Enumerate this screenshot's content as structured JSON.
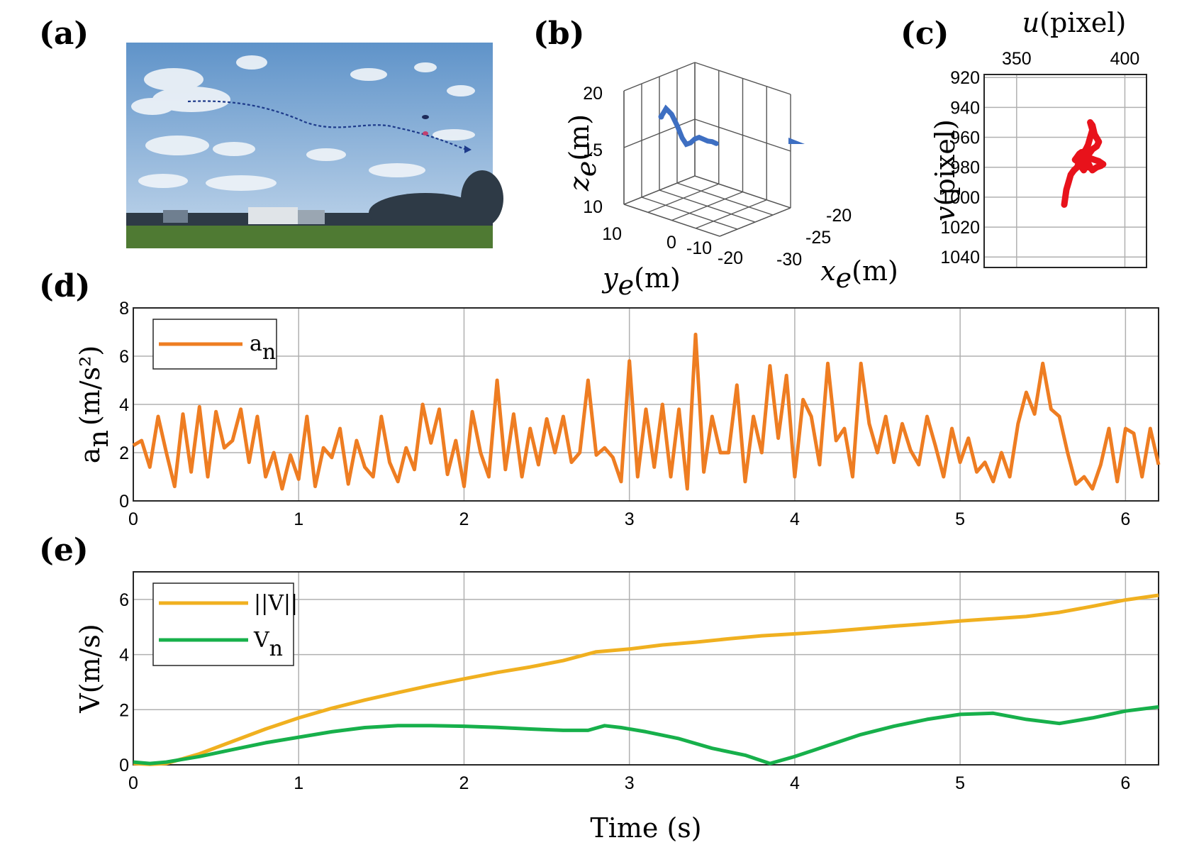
{
  "panels": {
    "a": "(a)",
    "b": "(b)",
    "c": "(c)",
    "d": "(d)",
    "e": "(e)"
  },
  "colors": {
    "sky_top": "#5f93c9",
    "sky_bottom": "#c4d8ec",
    "ground": "#4f7a33",
    "trajectory_b": "#3e6fc2",
    "track_c": "#e8121b",
    "an": "#ee7d22",
    "vnorm": "#f0b020",
    "vn": "#17b04b"
  },
  "chart_data": [
    {
      "id": "b",
      "type": "line3d",
      "xlabel": "x",
      "xlabel_sub": "e",
      "xlabel_unit": "(m)",
      "ylabel": "y",
      "ylabel_sub": "e",
      "ylabel_unit": "(m)",
      "zlabel": "z",
      "zlabel_sub": "e",
      "zlabel_unit": "(m)",
      "xticks": [
        "-20",
        "-25",
        "-30"
      ],
      "yticks": [
        "10",
        "0",
        "-10",
        "-20"
      ],
      "zticks": [
        "20",
        "15",
        "10"
      ],
      "xlim": [
        -32,
        -18
      ],
      "ylim": [
        -25,
        15
      ],
      "zlim": [
        10,
        20
      ],
      "trajectory": {
        "x": [
          -20.5,
          -21.2,
          -22.0,
          -22.8,
          -23.6,
          -24.3,
          -25.0,
          -25.8,
          -26.6,
          -27.4,
          -28.2,
          -29.0,
          -29.8
        ],
        "y": [
          8.0,
          5.0,
          1.5,
          -2.0,
          -5.0,
          -7.5,
          -10.0,
          -12.5,
          -15.0,
          -17.5,
          -20.0,
          -22.5,
          -25.0
        ],
        "z": [
          17.0,
          17.8,
          17.4,
          16.5,
          15.5,
          15.0,
          15.2,
          15.6,
          15.8,
          15.7,
          15.6,
          15.6,
          15.5
        ]
      }
    },
    {
      "id": "c",
      "type": "scatter",
      "xlabel": "u",
      "xlabel_unit": "(pixel)",
      "ylabel": "v",
      "ylabel_unit": "(pixel)",
      "xticks": [
        "350",
        "400"
      ],
      "yticks": [
        "920",
        "940",
        "960",
        "980",
        "1000",
        "1020",
        "1040"
      ],
      "xlim": [
        335,
        410
      ],
      "ylim": [
        1047,
        918
      ],
      "y_reversed": true,
      "grid": true,
      "track": {
        "u": [
          372,
          372.5,
          373,
          374,
          375,
          376.5,
          378,
          379,
          380,
          381,
          382,
          383,
          384,
          385,
          384,
          385,
          386,
          388,
          387,
          385,
          384,
          383,
          382,
          381,
          380,
          381,
          382,
          383,
          384,
          385,
          387,
          389,
          390,
          388,
          386,
          384,
          382,
          380,
          379,
          378,
          377,
          378,
          379,
          381,
          383
        ],
        "v": [
          1005,
          1000,
          995,
          990,
          985,
          982,
          980,
          976,
          972,
          970,
          968,
          965,
          960,
          955,
          950,
          952,
          958,
          963,
          966,
          968,
          970,
          972,
          975,
          978,
          980,
          982,
          979,
          977,
          980,
          982,
          980,
          979,
          978,
          976,
          975,
          974,
          972,
          970,
          971,
          973,
          975,
          976,
          978,
          979,
          980
        ]
      }
    },
    {
      "id": "d",
      "type": "line",
      "ylabel": "a",
      "ylabel_sub": "n",
      "ylabel_unit": "(m/s²)",
      "xlim": [
        0,
        6.2
      ],
      "ylim": [
        0,
        8
      ],
      "xticks": [
        "0",
        "1",
        "2",
        "3",
        "4",
        "5",
        "6"
      ],
      "yticks": [
        "0",
        "2",
        "4",
        "6",
        "8"
      ],
      "grid": true,
      "legend_position": "top-left",
      "series": [
        {
          "name": "a",
          "name_sub": "n",
          "x": [
            0.0,
            0.05,
            0.1,
            0.15,
            0.2,
            0.25,
            0.3,
            0.35,
            0.4,
            0.45,
            0.5,
            0.55,
            0.6,
            0.65,
            0.7,
            0.75,
            0.8,
            0.85,
            0.9,
            0.95,
            1.0,
            1.05,
            1.1,
            1.15,
            1.2,
            1.25,
            1.3,
            1.35,
            1.4,
            1.45,
            1.5,
            1.55,
            1.6,
            1.65,
            1.7,
            1.75,
            1.8,
            1.85,
            1.9,
            1.95,
            2.0,
            2.05,
            2.1,
            2.15,
            2.2,
            2.25,
            2.3,
            2.35,
            2.4,
            2.45,
            2.5,
            2.55,
            2.6,
            2.65,
            2.7,
            2.75,
            2.8,
            2.85,
            2.9,
            2.95,
            3.0,
            3.05,
            3.1,
            3.15,
            3.2,
            3.25,
            3.3,
            3.35,
            3.4,
            3.45,
            3.5,
            3.55,
            3.6,
            3.65,
            3.7,
            3.75,
            3.8,
            3.85,
            3.9,
            3.95,
            4.0,
            4.05,
            4.1,
            4.15,
            4.2,
            4.25,
            4.3,
            4.35,
            4.4,
            4.45,
            4.5,
            4.55,
            4.6,
            4.65,
            4.7,
            4.75,
            4.8,
            4.85,
            4.9,
            4.95,
            5.0,
            5.05,
            5.1,
            5.15,
            5.2,
            5.25,
            5.3,
            5.35,
            5.4,
            5.45,
            5.5,
            5.55,
            5.6,
            5.65,
            5.7,
            5.75,
            5.8,
            5.85,
            5.9,
            5.95,
            6.0,
            6.05,
            6.1,
            6.15,
            6.2
          ],
          "y": [
            2.3,
            2.5,
            1.4,
            3.5,
            2.0,
            0.6,
            3.6,
            1.2,
            3.9,
            1.0,
            3.7,
            2.2,
            2.5,
            3.8,
            1.6,
            3.5,
            1.0,
            2.0,
            0.5,
            1.9,
            0.9,
            3.5,
            0.6,
            2.2,
            1.8,
            3.0,
            0.7,
            2.5,
            1.4,
            1.0,
            3.5,
            1.6,
            0.8,
            2.2,
            1.3,
            4.0,
            2.4,
            3.8,
            1.1,
            2.5,
            0.6,
            3.7,
            2.0,
            1.0,
            5.0,
            1.3,
            3.6,
            1.0,
            3.0,
            1.5,
            3.4,
            2.0,
            3.5,
            1.6,
            2.0,
            5.0,
            1.9,
            2.2,
            1.8,
            0.8,
            5.8,
            1.0,
            3.8,
            1.4,
            4.0,
            1.0,
            3.8,
            0.5,
            6.9,
            1.2,
            3.5,
            2.0,
            2.0,
            4.8,
            0.8,
            3.5,
            2.0,
            5.6,
            2.6,
            5.2,
            1.0,
            4.2,
            3.5,
            1.5,
            5.7,
            2.5,
            3.0,
            1.0,
            5.7,
            3.2,
            2.0,
            3.5,
            1.6,
            3.2,
            2.1,
            1.5,
            3.5,
            2.3,
            1.0,
            3.0,
            1.6,
            2.6,
            1.2,
            1.6,
            0.8,
            2.0,
            1.0,
            3.2,
            4.5,
            3.6,
            5.7,
            3.8,
            3.5,
            2.0,
            0.7,
            1.0,
            0.5,
            1.5,
            3.0,
            0.8,
            3.0,
            2.8,
            1.0,
            3.0,
            1.5
          ]
        }
      ]
    },
    {
      "id": "e",
      "type": "line",
      "xlabel": "Time (s)",
      "ylabel": "V(m/s)",
      "xlim": [
        0,
        6.2
      ],
      "ylim": [
        0,
        7
      ],
      "xticks": [
        "0",
        "1",
        "2",
        "3",
        "4",
        "5",
        "6"
      ],
      "yticks": [
        "0",
        "2",
        "4",
        "6"
      ],
      "grid": true,
      "legend_position": "top-left",
      "series": [
        {
          "name": "||V||",
          "x": [
            0.0,
            0.1,
            0.2,
            0.4,
            0.6,
            0.8,
            1.0,
            1.2,
            1.4,
            1.6,
            1.8,
            2.0,
            2.2,
            2.4,
            2.6,
            2.8,
            3.0,
            3.2,
            3.4,
            3.6,
            3.8,
            4.0,
            4.2,
            4.4,
            4.6,
            4.8,
            5.0,
            5.2,
            5.4,
            5.6,
            5.8,
            6.0,
            6.2
          ],
          "y": [
            0.05,
            0.02,
            0.05,
            0.4,
            0.85,
            1.3,
            1.7,
            2.05,
            2.35,
            2.62,
            2.88,
            3.12,
            3.35,
            3.55,
            3.78,
            4.1,
            4.2,
            4.35,
            4.45,
            4.57,
            4.68,
            4.75,
            4.83,
            4.93,
            5.03,
            5.12,
            5.22,
            5.3,
            5.38,
            5.53,
            5.75,
            5.98,
            6.15
          ]
        },
        {
          "name": "V",
          "name_sub": "n",
          "x": [
            0.0,
            0.1,
            0.2,
            0.4,
            0.6,
            0.8,
            1.0,
            1.2,
            1.4,
            1.6,
            1.8,
            2.0,
            2.2,
            2.4,
            2.6,
            2.75,
            2.85,
            2.95,
            3.1,
            3.3,
            3.5,
            3.7,
            3.85,
            4.0,
            4.2,
            4.4,
            4.6,
            4.8,
            5.0,
            5.2,
            5.4,
            5.6,
            5.8,
            6.0,
            6.2
          ],
          "y": [
            0.1,
            0.05,
            0.1,
            0.3,
            0.55,
            0.8,
            1.0,
            1.2,
            1.35,
            1.42,
            1.42,
            1.4,
            1.36,
            1.3,
            1.25,
            1.25,
            1.42,
            1.35,
            1.2,
            0.95,
            0.6,
            0.35,
            0.05,
            0.3,
            0.7,
            1.1,
            1.4,
            1.65,
            1.83,
            1.87,
            1.65,
            1.5,
            1.7,
            1.95,
            2.1
          ]
        }
      ]
    }
  ]
}
